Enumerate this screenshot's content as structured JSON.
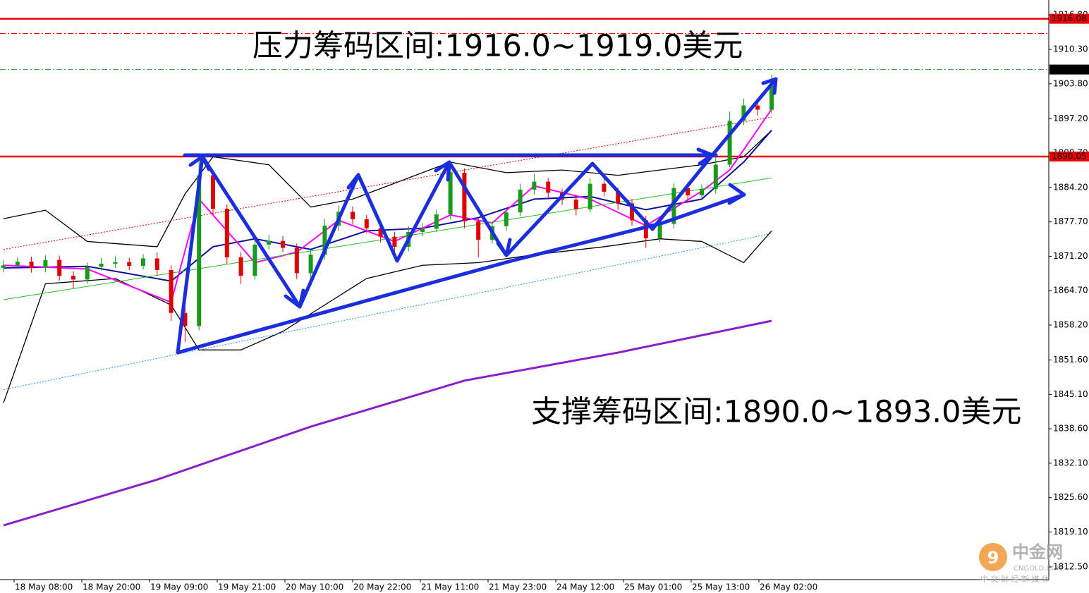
{
  "chart_data": {
    "type": "candlestick",
    "annotations": [
      "压力筹码区间:1916.0~1919.0美元",
      "支撑筹码区间:1890.0~1893.0美元"
    ],
    "ylim": [
      1810.1,
      1919.63
    ],
    "yticks": [
      {
        "value": 1916.8,
        "label": "1916.80"
      },
      {
        "value": 1910.3,
        "label": "1910.30"
      },
      {
        "value": 1903.8,
        "label": "1903.80"
      },
      {
        "value": 1897.2,
        "label": "1897.20"
      },
      {
        "value": 1890.7,
        "label": "1890.70"
      },
      {
        "value": 1884.2,
        "label": "1884.20"
      },
      {
        "value": 1877.7,
        "label": "1877.70"
      },
      {
        "value": 1871.2,
        "label": "1871.20"
      },
      {
        "value": 1864.7,
        "label": "1864.70"
      },
      {
        "value": 1858.2,
        "label": "1858.20"
      },
      {
        "value": 1851.6,
        "label": "1851.60"
      },
      {
        "value": 1845.1,
        "label": "1845.10"
      },
      {
        "value": 1838.6,
        "label": "1838.60"
      },
      {
        "value": 1832.1,
        "label": "1832.10"
      },
      {
        "value": 1825.6,
        "label": "1825.60"
      },
      {
        "value": 1819.1,
        "label": "1819.10"
      },
      {
        "value": 1812.5,
        "label": "1812.50"
      }
    ],
    "categories": [
      "18 May 08:00",
      "18 May 20:00",
      "19 May 09:00",
      "19 May 21:00",
      "20 May 10:00",
      "20 May 22:00",
      "21 May 11:00",
      "21 May 23:00",
      "24 May 12:00",
      "25 May 01:00",
      "25 May 13:00",
      "26 May 02:00"
    ],
    "up_color": "#1a9a1a",
    "down_color": "#e00000",
    "open": [
      1869.0,
      1869.5,
      1870.2,
      1869.0,
      1870.5,
      1867.5,
      1866.8,
      1869.2,
      1869.8,
      1870.1,
      1869.4,
      1870.8,
      1868.6,
      1860.5,
      1858.0,
      1886.5,
      1880.2,
      1871.0,
      1867.5,
      1873.4,
      1874.1,
      1872.8,
      1868.0,
      1871.5,
      1877.0,
      1879.6,
      1878.2,
      1876.5,
      1874.9,
      1873.0,
      1875.8,
      1876.4,
      1879.1,
      1887.0,
      1877.8,
      1874.3,
      1876.9,
      1879.5,
      1883.8,
      1885.3,
      1883.2,
      1881.9,
      1880.1,
      1884.9,
      1883.4,
      1881.2,
      1878.0,
      1874.6,
      1877.3,
      1884.1,
      1882.7,
      1883.9,
      1888.5,
      1896.8,
      1899.7,
      1898.9
    ],
    "high": [
      1870.5,
      1871.0,
      1871.1,
      1871.4,
      1871.3,
      1868.4,
      1870.0,
      1870.9,
      1871.2,
      1870.9,
      1871.6,
      1871.9,
      1869.5,
      1862.0,
      1890.0,
      1887.5,
      1881.0,
      1872.0,
      1874.5,
      1875.2,
      1875.0,
      1873.6,
      1872.4,
      1878.2,
      1880.8,
      1880.6,
      1879.0,
      1877.3,
      1875.8,
      1876.9,
      1877.5,
      1880.0,
      1889.0,
      1887.8,
      1878.5,
      1877.8,
      1880.4,
      1884.9,
      1886.8,
      1886.0,
      1884.0,
      1882.8,
      1886.0,
      1885.8,
      1884.2,
      1882.0,
      1878.8,
      1878.3,
      1885.0,
      1885.2,
      1884.8,
      1890.0,
      1898.5,
      1901.0,
      1900.6,
      1905.5
    ],
    "low": [
      1868.2,
      1868.8,
      1868.1,
      1868.2,
      1866.6,
      1865.2,
      1866.0,
      1868.5,
      1869.0,
      1868.6,
      1868.7,
      1867.5,
      1859.0,
      1855.0,
      1857.2,
      1879.0,
      1869.8,
      1866.0,
      1866.8,
      1872.5,
      1872.0,
      1866.9,
      1867.0,
      1870.6,
      1876.0,
      1877.2,
      1875.6,
      1873.8,
      1872.0,
      1872.1,
      1875.0,
      1875.8,
      1878.2,
      1876.5,
      1871.0,
      1873.6,
      1876.0,
      1878.8,
      1882.9,
      1882.3,
      1880.9,
      1878.9,
      1879.5,
      1882.5,
      1880.0,
      1877.0,
      1872.8,
      1873.9,
      1876.5,
      1881.5,
      1882.0,
      1883.0,
      1888.0,
      1896.0,
      1897.8,
      1898.2
    ],
    "close": [
      1869.5,
      1870.2,
      1869.0,
      1870.5,
      1867.5,
      1866.8,
      1869.2,
      1869.8,
      1870.1,
      1869.4,
      1870.8,
      1868.6,
      1860.5,
      1858.0,
      1886.5,
      1880.2,
      1871.0,
      1867.5,
      1873.4,
      1874.1,
      1872.8,
      1868.0,
      1871.5,
      1877.0,
      1879.6,
      1878.2,
      1876.5,
      1874.9,
      1873.0,
      1875.8,
      1876.4,
      1879.1,
      1887.0,
      1877.8,
      1874.3,
      1876.9,
      1879.5,
      1883.8,
      1885.3,
      1883.2,
      1881.9,
      1880.1,
      1884.9,
      1883.4,
      1881.2,
      1878.0,
      1874.6,
      1877.3,
      1884.1,
      1882.7,
      1883.9,
      1888.5,
      1896.8,
      1899.7,
      1898.9,
      1903.5
    ],
    "series": [
      {
        "color": "#8a1ec8",
        "width": 3,
        "x": [
          0,
          11,
          22,
          33,
          44,
          55
        ],
        "values": [
          1820.36,
          1829.0,
          1839.0,
          1847.7,
          1853.0,
          1859.0
        ]
      },
      {
        "color": "#000000",
        "width": 1.3,
        "x": [
          0,
          3,
          6,
          11,
          13,
          15,
          19,
          22,
          25,
          29,
          32,
          36,
          40,
          44,
          47,
          50,
          53,
          55
        ],
        "values": [
          1878.3,
          1879.9,
          1874.0,
          1873.0,
          1883.0,
          1890.0,
          1888.5,
          1880.5,
          1882.0,
          1886.0,
          1889.0,
          1887.0,
          1887.5,
          1886.5,
          1887.5,
          1888.5,
          1890.0,
          1895.0
        ]
      },
      {
        "color": "#000000",
        "width": 1.3,
        "x": [
          0,
          3,
          8,
          12,
          14,
          17,
          20,
          23,
          26,
          30,
          34,
          38,
          43,
          47,
          50,
          53,
          55
        ],
        "values": [
          1843.5,
          1866.0,
          1867.0,
          1862.0,
          1853.5,
          1853.5,
          1857.0,
          1862.0,
          1867.0,
          1869.5,
          1870.0,
          1871.5,
          1873.0,
          1874.5,
          1874.0,
          1870.0,
          1876.0
        ]
      },
      {
        "color": "#1010a0",
        "width": 2,
        "x": [
          0,
          6,
          12,
          15,
          18,
          22,
          26,
          30,
          34,
          38,
          42,
          46,
          50,
          53,
          55
        ],
        "values": [
          1869.0,
          1869.3,
          1866.5,
          1873.0,
          1874.5,
          1872.5,
          1876.0,
          1876.5,
          1878.5,
          1882.0,
          1882.5,
          1880.0,
          1882.0,
          1889.0,
          1895.0
        ]
      },
      {
        "color": "#ff00ff",
        "width": 2,
        "x": [
          0,
          6,
          12,
          14,
          16,
          18,
          21,
          24,
          28,
          32,
          35,
          38,
          42,
          46,
          50,
          52,
          55
        ],
        "values": [
          1869.5,
          1868.8,
          1862.5,
          1882.0,
          1876.0,
          1870.0,
          1872.0,
          1878.0,
          1874.0,
          1879.0,
          1877.5,
          1884.5,
          1882.0,
          1877.0,
          1883.5,
          1887.5,
          1899.0
        ]
      },
      {
        "color": "#22bb22",
        "width": 1,
        "x": [
          0,
          55
        ],
        "values": [
          1863.0,
          1886.0
        ]
      },
      {
        "color": "#cc0000",
        "width": 1,
        "dash": "2 2",
        "x": [
          0,
          55
        ],
        "values": [
          1872.5,
          1897.5
        ]
      },
      {
        "color": "#1e90ff",
        "width": 1,
        "dash": "2 2",
        "x": [
          0,
          55
        ],
        "values": [
          1846.0,
          1875.5
        ]
      }
    ],
    "levels": [
      {
        "value": 1916.08,
        "color": "#ee0000",
        "style": "solid",
        "label_bg": "#ee0000"
      },
      {
        "value": 1913.3,
        "color": "#ee0000",
        "style": "dashdot"
      },
      {
        "value": 1906.49,
        "color": "#3a9a3a",
        "style": "dashdot",
        "label_bg": "#000000"
      },
      {
        "value": 1890.05,
        "color": "#ee0000",
        "style": "solid",
        "label_bg": "#ee0000"
      }
    ],
    "watermark": {
      "name": "中金网",
      "domain": "CNGOLD.COM",
      "slogan": "中 文 财 经 新 媒 体"
    }
  }
}
